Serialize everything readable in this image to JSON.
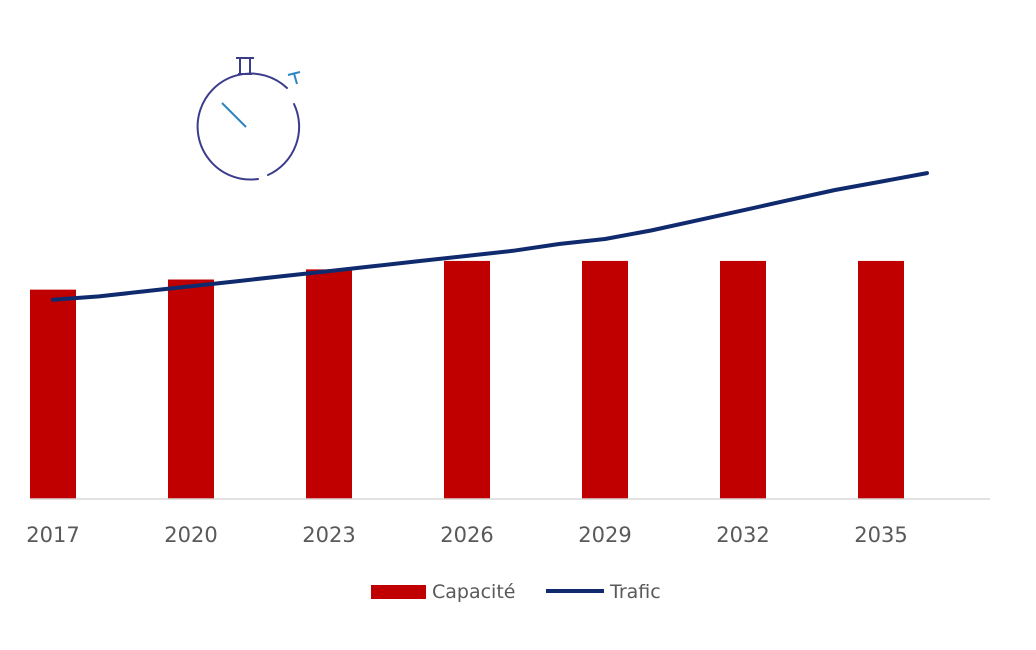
{
  "chart_data": {
    "type": "bar",
    "categories": [
      "2017",
      "2020",
      "2023",
      "2026",
      "2029",
      "2032",
      "2035"
    ],
    "series": [
      {
        "name": "Capacité",
        "type": "bar",
        "values": [
          62,
          65,
          68,
          70.5,
          70.5,
          70.5,
          70.5
        ]
      },
      {
        "name": "Trafic",
        "type": "line",
        "x": [
          2017,
          2018,
          2019,
          2020,
          2021,
          2022,
          2023,
          2024,
          2025,
          2026,
          2027,
          2028,
          2029,
          2030,
          2031,
          2032,
          2033,
          2034,
          2035,
          2036
        ],
        "values": [
          59,
          60,
          61.5,
          63,
          64.5,
          66,
          67.5,
          69,
          70.5,
          72,
          73.5,
          75.5,
          77,
          79.5,
          82.5,
          85.5,
          88.5,
          91.5,
          94,
          96.5
        ]
      }
    ],
    "ylim": [
      0,
      130
    ],
    "grid": false,
    "legend": "bottom",
    "colors": {
      "bar": "#c00000",
      "line": "#102a6e",
      "axis": "#d9d9d9",
      "icon": "#3c3c8c",
      "icon_accent": "#2e86c1"
    },
    "annotation_icon": "stopwatch-icon"
  }
}
